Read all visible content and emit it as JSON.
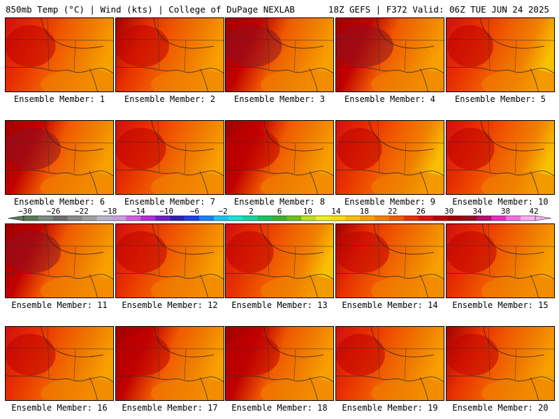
{
  "header": {
    "left_text": "850mb Temp (°C) | Wind (kts) | College of DuPage NEXLAB",
    "right_text": "18Z GEFS | F372 Valid: 06Z TUE JUN 24 2025"
  },
  "panels": [
    {
      "member": 1,
      "label": "Ensemble Member: 1",
      "heat": 0.55
    },
    {
      "member": 2,
      "label": "Ensemble Member: 2",
      "heat": 0.7
    },
    {
      "member": 3,
      "label": "Ensemble Member: 3",
      "heat": 0.85
    },
    {
      "member": 4,
      "label": "Ensemble Member: 4",
      "heat": 0.9
    },
    {
      "member": 5,
      "label": "Ensemble Member: 5",
      "heat": 0.4
    },
    {
      "member": 6,
      "label": "Ensemble Member: 6",
      "heat": 0.8
    },
    {
      "member": 7,
      "label": "Ensemble Member: 7",
      "heat": 0.55
    },
    {
      "member": 8,
      "label": "Ensemble Member: 8",
      "heat": 0.75
    },
    {
      "member": 9,
      "label": "Ensemble Member: 9",
      "heat": 0.35
    },
    {
      "member": 10,
      "label": "Ensemble Member: 10",
      "heat": 0.45
    },
    {
      "member": 11,
      "label": "Ensemble Member: 11",
      "heat": 0.8
    },
    {
      "member": 12,
      "label": "Ensemble Member: 12",
      "heat": 0.6
    },
    {
      "member": 13,
      "label": "Ensemble Member: 13",
      "heat": 0.45
    },
    {
      "member": 14,
      "label": "Ensemble Member: 14",
      "heat": 0.7
    },
    {
      "member": 15,
      "label": "Ensemble Member: 15",
      "heat": 0.55
    },
    {
      "member": 16,
      "label": "Ensemble Member: 16",
      "heat": 0.55
    },
    {
      "member": 17,
      "label": "Ensemble Member: 17",
      "heat": 0.75
    },
    {
      "member": 18,
      "label": "Ensemble Member: 18",
      "heat": 0.75
    },
    {
      "member": 19,
      "label": "Ensemble Member: 19",
      "heat": 0.5
    },
    {
      "member": 20,
      "label": "Ensemble Member: 20",
      "heat": 0.65
    }
  ],
  "colorbar": {
    "unit": "°C",
    "ticks": [
      "-30",
      "-26",
      "-22",
      "-18",
      "-14",
      "-10",
      "-6",
      "-2",
      "2",
      "6",
      "10",
      "14",
      "18",
      "22",
      "26",
      "30",
      "34",
      "38",
      "42"
    ],
    "colors": [
      "#5a7a5a",
      "#7c8c7c",
      "#6e6e6e",
      "#8a8a8a",
      "#a0a0a0",
      "#b8b8c8",
      "#c8a0e0",
      "#d060e0",
      "#b030d0",
      "#7020c0",
      "#3020b0",
      "#2040e0",
      "#2080f0",
      "#20c0f0",
      "#20e0d0",
      "#20d0a0",
      "#20c060",
      "#40b030",
      "#70c020",
      "#c0e020",
      "#f0f020",
      "#f8e000",
      "#f8c000",
      "#f8a000",
      "#f08000",
      "#f05a00",
      "#e83000",
      "#e01010",
      "#c00000",
      "#a00000",
      "#901020",
      "#b01070",
      "#e030c0",
      "#f070e0",
      "#f8b0f0"
    ]
  }
}
